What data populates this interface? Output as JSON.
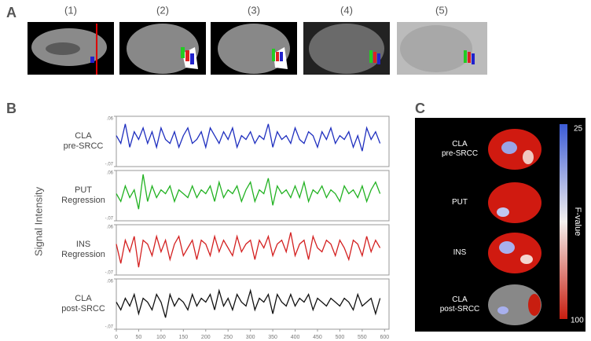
{
  "panel_a": {
    "label": "A",
    "images": [
      "(1)",
      "(2)",
      "(3)",
      "(4)",
      "(5)"
    ]
  },
  "chart_data": {
    "panel_label": "B",
    "type": "line",
    "ylabel": "Signal Intensity",
    "x": [
      0,
      10,
      20,
      30,
      40,
      50,
      60,
      70,
      80,
      90,
      100,
      110,
      120,
      130,
      140,
      150,
      160,
      170,
      180,
      190,
      200,
      210,
      220,
      230,
      240,
      250,
      260,
      270,
      280,
      290,
      300,
      310,
      320,
      330,
      340,
      350,
      360,
      370,
      380,
      390,
      400,
      410,
      420,
      430,
      440,
      450,
      460,
      470,
      480,
      490,
      500,
      510,
      520,
      530,
      540,
      550,
      560,
      570,
      580,
      590
    ],
    "xlim": [
      0,
      610
    ],
    "xticks": [
      0,
      50,
      100,
      150,
      200,
      250,
      300,
      350,
      400,
      450,
      500,
      550,
      600
    ],
    "ylim": [
      -0.07,
      0.06
    ],
    "yticks": [
      {
        "value": 0.06,
        "label": ".06"
      },
      {
        "value": -0.07,
        "label": "-.07"
      }
    ],
    "series": [
      {
        "name": "CLA\npre-SRCC",
        "color": "#1f2fbf",
        "values": [
          0.01,
          -0.01,
          0.04,
          -0.02,
          0.02,
          0.0,
          0.03,
          -0.01,
          0.02,
          -0.02,
          0.03,
          0.0,
          -0.01,
          0.02,
          -0.02,
          0.01,
          0.03,
          -0.01,
          0.0,
          0.02,
          -0.02,
          0.03,
          0.01,
          -0.01,
          0.02,
          0.0,
          0.03,
          -0.02,
          0.01,
          0.0,
          0.02,
          -0.01,
          0.01,
          0.0,
          0.04,
          -0.02,
          0.02,
          0.0,
          0.01,
          -0.01,
          0.03,
          0.0,
          -0.01,
          0.02,
          0.01,
          -0.02,
          0.02,
          0.0,
          0.03,
          -0.01,
          0.01,
          0.0,
          0.02,
          -0.02,
          0.01,
          -0.03,
          0.03,
          0.0,
          0.02,
          -0.01
        ]
      },
      {
        "name": "PUT\nRegression",
        "color": "#22b222",
        "values": [
          0.0,
          -0.02,
          0.02,
          -0.01,
          0.01,
          -0.04,
          0.05,
          -0.02,
          0.02,
          -0.01,
          0.01,
          0.0,
          0.02,
          -0.02,
          0.01,
          0.0,
          -0.01,
          0.02,
          -0.01,
          0.01,
          0.0,
          0.02,
          -0.02,
          0.03,
          -0.01,
          0.01,
          0.0,
          0.02,
          -0.02,
          0.01,
          0.03,
          -0.02,
          0.01,
          0.0,
          0.04,
          -0.03,
          0.02,
          0.0,
          0.01,
          -0.01,
          0.02,
          -0.01,
          0.03,
          -0.02,
          0.01,
          0.0,
          0.02,
          -0.01,
          0.01,
          0.0,
          -0.02,
          0.02,
          0.0,
          0.01,
          -0.01,
          0.02,
          -0.02,
          0.01,
          0.03,
          0.0
        ]
      },
      {
        "name": "INS\nRegression",
        "color": "#d42020",
        "values": [
          0.01,
          -0.04,
          0.02,
          -0.01,
          0.03,
          -0.05,
          0.02,
          0.01,
          -0.02,
          0.03,
          -0.01,
          0.02,
          -0.03,
          0.01,
          0.03,
          -0.02,
          0.0,
          0.02,
          -0.03,
          0.02,
          0.01,
          -0.02,
          0.03,
          -0.01,
          0.02,
          0.0,
          -0.02,
          0.03,
          -0.01,
          0.01,
          0.02,
          -0.03,
          0.02,
          0.0,
          0.03,
          -0.02,
          0.01,
          0.02,
          -0.01,
          0.04,
          -0.02,
          0.01,
          0.02,
          -0.03,
          0.03,
          0.0,
          -0.01,
          0.02,
          0.01,
          -0.02,
          0.02,
          0.0,
          -0.03,
          0.02,
          0.01,
          -0.02,
          0.03,
          -0.01,
          0.02,
          0.0
        ]
      },
      {
        "name": "CLA\npost-SRCC",
        "color": "#111111",
        "values": [
          0.0,
          -0.02,
          0.01,
          -0.01,
          0.02,
          -0.03,
          0.01,
          0.0,
          -0.02,
          0.02,
          0.0,
          -0.04,
          0.02,
          -0.01,
          0.01,
          0.0,
          -0.02,
          0.02,
          -0.01,
          0.01,
          0.0,
          0.02,
          -0.02,
          0.03,
          -0.01,
          0.01,
          -0.02,
          0.02,
          0.0,
          -0.01,
          0.03,
          -0.02,
          0.01,
          0.0,
          0.02,
          -0.03,
          0.02,
          0.0,
          -0.01,
          0.02,
          -0.01,
          0.01,
          0.0,
          0.02,
          -0.02,
          0.01,
          0.0,
          -0.01,
          0.01,
          0.0,
          -0.01,
          0.01,
          0.0,
          -0.02,
          0.02,
          -0.01,
          0.0,
          0.01,
          -0.03,
          0.01
        ]
      }
    ]
  },
  "panel_c": {
    "label": "C",
    "rows": [
      "CLA\npre-SRCC",
      "PUT",
      "INS",
      "CLA\npost-SRCC"
    ],
    "colorbar": {
      "label": "F-value",
      "top": "25",
      "bottom": "100"
    }
  }
}
